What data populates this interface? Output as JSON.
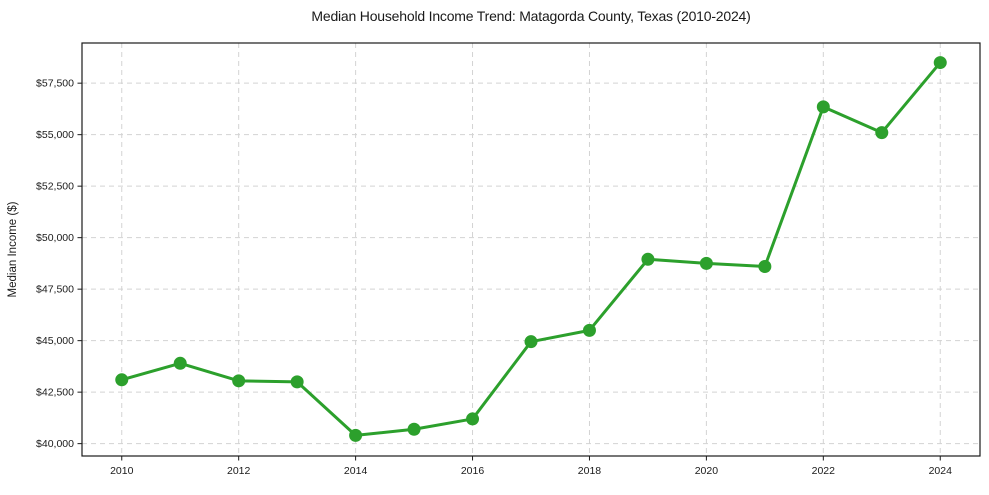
{
  "figure": {
    "background": "#ffffff"
  },
  "chart_data": {
    "type": "line",
    "title": "Median Household Income Trend: Matagorda County, Texas (2010-2024)",
    "xlabel": "",
    "ylabel": "Median Income ($)",
    "x": [
      2010,
      2011,
      2012,
      2013,
      2014,
      2015,
      2016,
      2017,
      2018,
      2019,
      2020,
      2021,
      2022,
      2023,
      2024
    ],
    "series": [
      {
        "name": "Median Household Income",
        "color": "#2ca02c",
        "marker": "circle",
        "values": [
          43100,
          43900,
          43050,
          43000,
          40400,
          40700,
          41200,
          44950,
          45500,
          48950,
          48750,
          48600,
          56350,
          55100,
          58500
        ]
      }
    ],
    "xlim": [
      2009.32,
      2024.68
    ],
    "ylim": [
      39400,
      59450
    ],
    "xticks": {
      "values": [
        2010,
        2012,
        2014,
        2016,
        2018,
        2020,
        2022,
        2024
      ],
      "labels": [
        "2010",
        "2012",
        "2014",
        "2016",
        "2018",
        "2020",
        "2022",
        "2024"
      ]
    },
    "yticks": {
      "values": [
        40000,
        42500,
        45000,
        47500,
        50000,
        52500,
        55000,
        57500
      ],
      "labels": [
        "$40,000",
        "$42,500",
        "$45,000",
        "$47,500",
        "$50,000",
        "$52,500",
        "$55,000",
        "$57,500"
      ]
    },
    "grid": true,
    "grid_color": "#d3d3d3",
    "grid_style": "dashed",
    "axis_color": "#1a1a1a",
    "text_color": "#1a1a1a",
    "legend_position": "none"
  }
}
